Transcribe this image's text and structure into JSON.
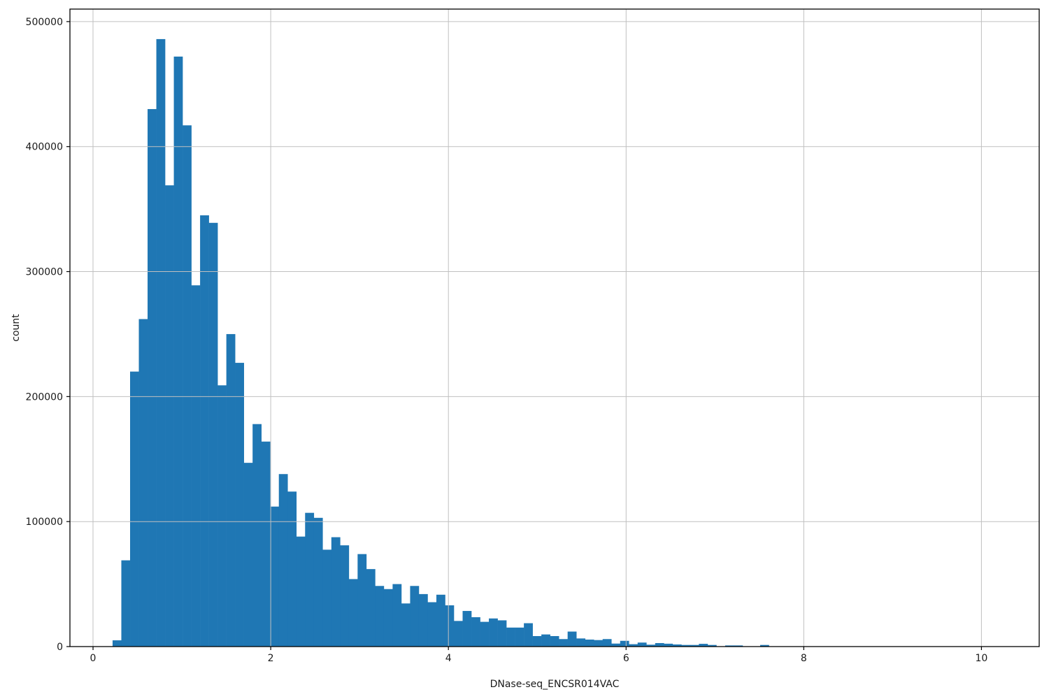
{
  "chart_data": {
    "type": "bar",
    "subtype": "histogram",
    "title": "",
    "xlabel": "DNase-seq_ENCSR014VAC",
    "ylabel": "count",
    "bar_color": "#1f77b4",
    "grid": true,
    "grid_color": "#c0c0c0",
    "spine_color": "#000000",
    "legend": "none",
    "xlim": [
      -0.26,
      10.65
    ],
    "ylim": [
      0,
      510000
    ],
    "xticks": [
      0,
      2,
      4,
      6,
      8,
      10
    ],
    "xtick_labels": [
      "0",
      "2",
      "4",
      "6",
      "8",
      "10"
    ],
    "yticks": [
      0,
      100000,
      200000,
      300000,
      400000,
      500000
    ],
    "ytick_labels": [
      "0",
      "100000",
      "200000",
      "300000",
      "400000",
      "500000"
    ],
    "bin_start": 0.22,
    "bin_width": 0.0985,
    "counts": [
      5000,
      69000,
      220000,
      262000,
      430000,
      486000,
      369000,
      472000,
      417000,
      289000,
      345000,
      339000,
      209000,
      250000,
      227000,
      147000,
      178000,
      164000,
      112000,
      138000,
      124000,
      88000,
      107000,
      103000,
      77500,
      87500,
      81000,
      54000,
      74000,
      62000,
      48500,
      46000,
      50000,
      34500,
      48500,
      42000,
      35500,
      41500,
      33000,
      20500,
      28500,
      23500,
      19800,
      22500,
      21000,
      15200,
      15200,
      18700,
      8400,
      9700,
      8400,
      6000,
      12000,
      6500,
      5600,
      5200,
      6000,
      2400,
      4600,
      1900,
      3200,
      1500,
      2800,
      2300,
      1700,
      1300,
      1300,
      2200,
      1300,
      0,
      900,
      900,
      0,
      0,
      1300
    ]
  }
}
